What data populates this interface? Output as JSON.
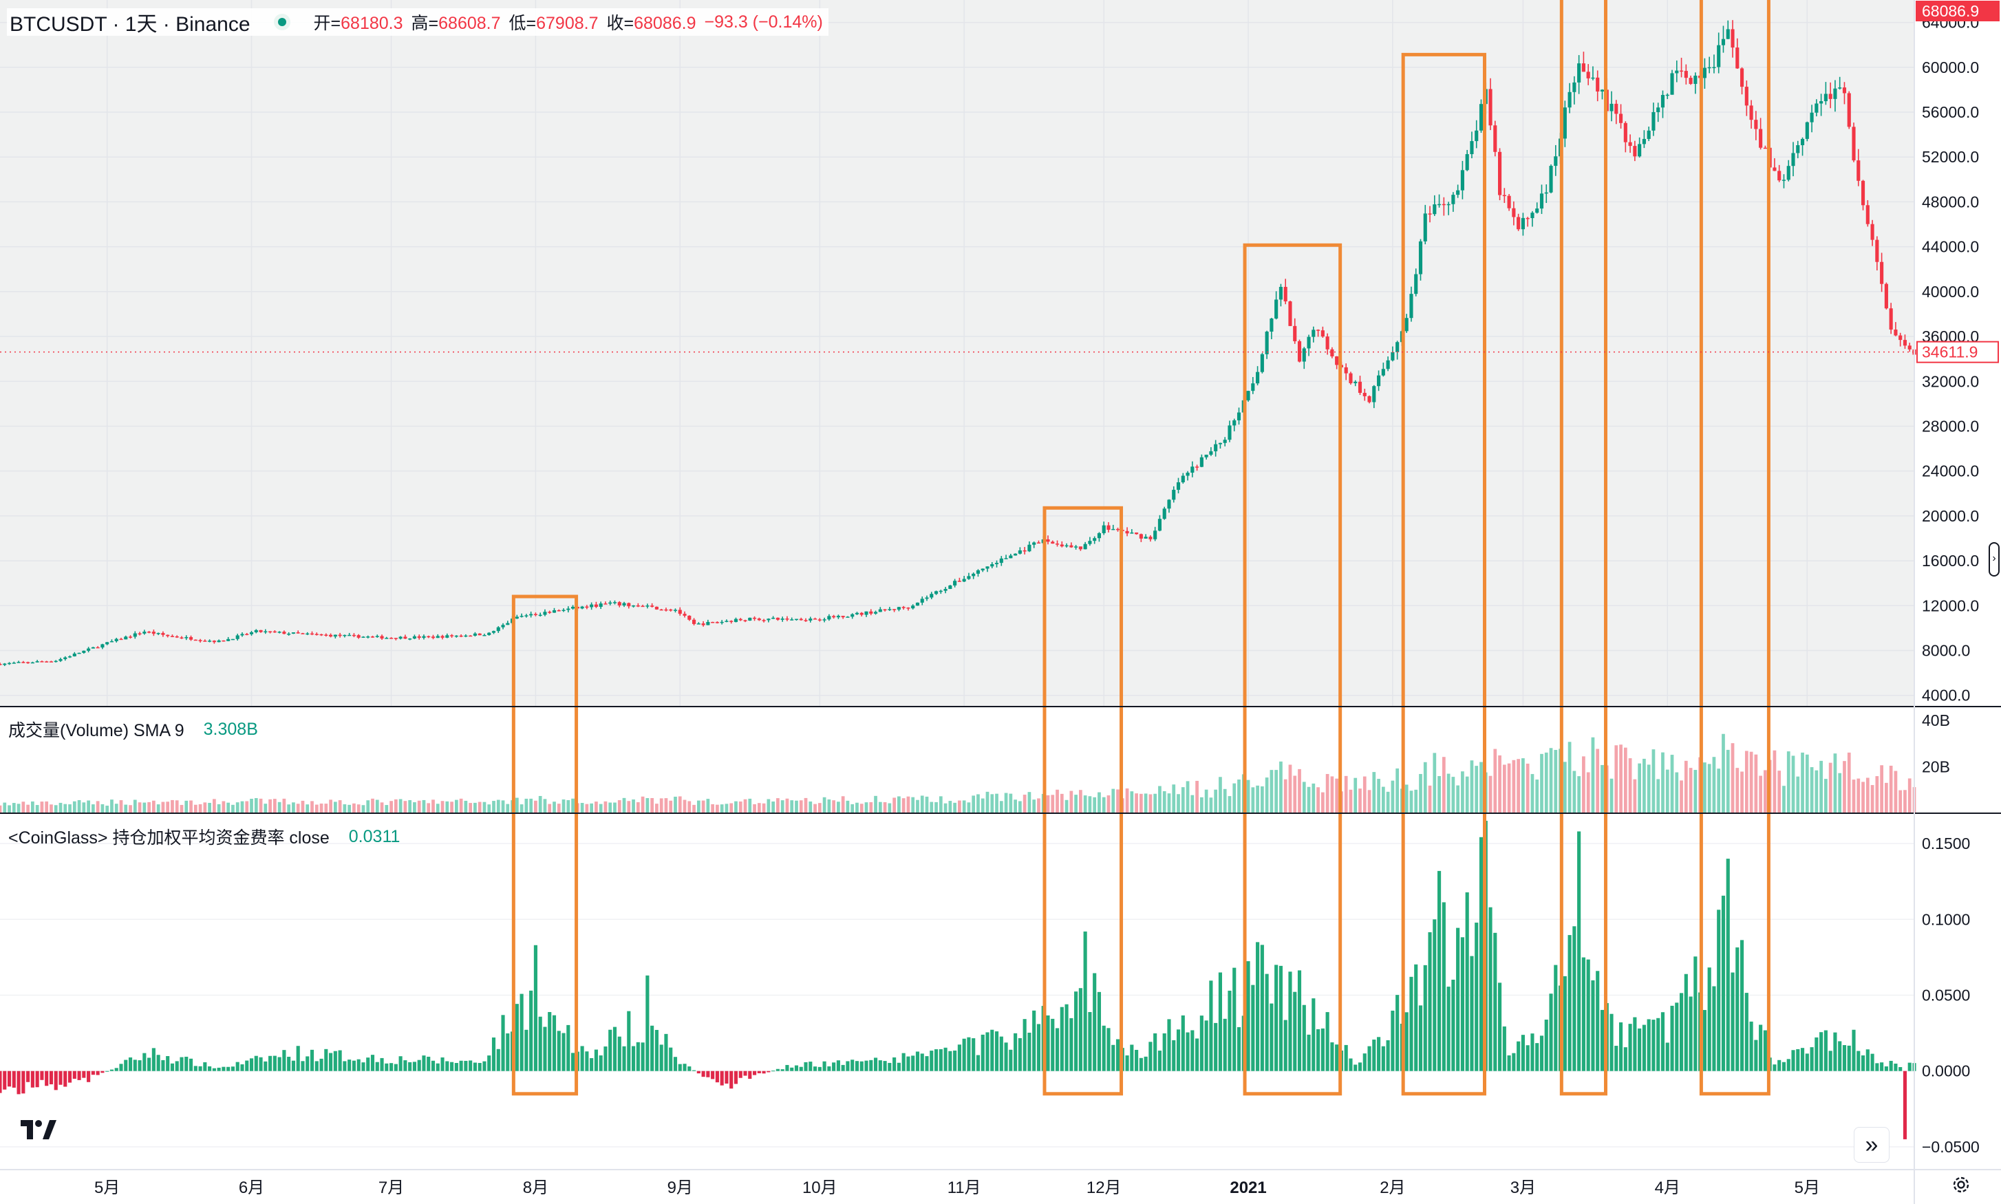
{
  "symbol": {
    "title": "BTCUSDT · 1天 · Binance"
  },
  "ohlc": {
    "open_label": "开=",
    "open": "68180.3",
    "high_label": "高=",
    "high": "68608.7",
    "low_label": "低=",
    "low": "67908.7",
    "close_label": "收=",
    "close": "68086.9",
    "change": "−93.3 (−0.14%)"
  },
  "price_axis": {
    "ticks": [
      "64000.0",
      "60000.0",
      "56000.0",
      "52000.0",
      "48000.0",
      "44000.0",
      "40000.0",
      "36000.0",
      "32000.0",
      "28000.0",
      "24000.0",
      "20000.0",
      "16000.0",
      "12000.0",
      "8000.0",
      "4000.0"
    ],
    "current_price_label": "68086.9",
    "last_visible_price_label": "34611.9"
  },
  "volume": {
    "title": "成交量(Volume) SMA 9",
    "value": "3.308B",
    "ticks": [
      "40B",
      "20B"
    ]
  },
  "funding": {
    "title": "<CoinGlass> 持仓加权平均资金费率 close",
    "value": "0.0311",
    "ticks": [
      "0.1500",
      "0.1000",
      "0.0500",
      "0.0000",
      "−0.0500"
    ]
  },
  "time_axis": {
    "labels": [
      "5月",
      "6月",
      "7月",
      "8月",
      "9月",
      "10月",
      "11月",
      "12月",
      "2021",
      "2月",
      "3月",
      "4月",
      "5月"
    ]
  },
  "colors": {
    "up": "#089981",
    "down": "#f23645",
    "vol_up": "#7fd4bd",
    "vol_down": "#f4a3ab",
    "fr_pos": "#22ab7b",
    "fr_neg": "#e0284a",
    "highlight": "#f08a35",
    "plot_bg": "#f0f1f1"
  },
  "icons": {
    "logo": "tradingview-logo-icon",
    "goto": "double-chevron-right-icon",
    "settings": "gear-icon"
  },
  "chart_data": {
    "type": "candlestick",
    "x_range": [
      "2020-04-08",
      "2021-05-24"
    ],
    "x_ticks": [
      {
        "label": "5月",
        "date": "2020-05-01"
      },
      {
        "label": "6月",
        "date": "2020-06-01"
      },
      {
        "label": "7月",
        "date": "2020-07-01"
      },
      {
        "label": "8月",
        "date": "2020-08-01"
      },
      {
        "label": "9月",
        "date": "2020-09-01"
      },
      {
        "label": "10月",
        "date": "2020-10-01"
      },
      {
        "label": "11月",
        "date": "2020-11-01"
      },
      {
        "label": "12月",
        "date": "2020-12-01"
      },
      {
        "label": "2021",
        "date": "2021-01-01"
      },
      {
        "label": "2月",
        "date": "2021-02-01"
      },
      {
        "label": "3月",
        "date": "2021-03-01"
      },
      {
        "label": "4月",
        "date": "2021-04-01"
      },
      {
        "label": "5月",
        "date": "2021-05-01"
      }
    ],
    "y_range": [
      3000,
      66000
    ],
    "price_path_close": [
      [
        "2020-04-08",
        6800
      ],
      [
        "2020-04-20",
        7100
      ],
      [
        "2020-05-02",
        8800
      ],
      [
        "2020-05-09",
        9700
      ],
      [
        "2020-05-14",
        9300
      ],
      [
        "2020-05-25",
        8800
      ],
      [
        "2020-06-02",
        9700
      ],
      [
        "2020-06-15",
        9400
      ],
      [
        "2020-06-30",
        9150
      ],
      [
        "2020-07-10",
        9200
      ],
      [
        "2020-07-22",
        9500
      ],
      [
        "2020-07-28",
        11000
      ],
      [
        "2020-08-08",
        11700
      ],
      [
        "2020-08-17",
        12200
      ],
      [
        "2020-08-31",
        11650
      ],
      [
        "2020-09-04",
        10300
      ],
      [
        "2020-09-15",
        10800
      ],
      [
        "2020-09-30",
        10800
      ],
      [
        "2020-10-10",
        11300
      ],
      [
        "2020-10-20",
        11900
      ],
      [
        "2020-10-25",
        13000
      ],
      [
        "2020-11-06",
        15500
      ],
      [
        "2020-11-18",
        17800
      ],
      [
        "2020-11-26",
        17000
      ],
      [
        "2020-12-01",
        19000
      ],
      [
        "2020-12-11",
        18000
      ],
      [
        "2020-12-17",
        23000
      ],
      [
        "2020-12-27",
        27000
      ],
      [
        "2021-01-03",
        33000
      ],
      [
        "2021-01-08",
        40500
      ],
      [
        "2021-01-12",
        33500
      ],
      [
        "2021-01-15",
        37000
      ],
      [
        "2021-01-22",
        32500
      ],
      [
        "2021-01-27",
        30500
      ],
      [
        "2021-02-04",
        37500
      ],
      [
        "2021-02-08",
        46500
      ],
      [
        "2021-02-15",
        49000
      ],
      [
        "2021-02-21",
        57500
      ],
      [
        "2021-02-24",
        49000
      ],
      [
        "2021-02-28",
        45500
      ],
      [
        "2021-03-06",
        49000
      ],
      [
        "2021-03-13",
        61000
      ],
      [
        "2021-03-18",
        57500
      ],
      [
        "2021-03-25",
        52500
      ],
      [
        "2021-04-02",
        59000
      ],
      [
        "2021-04-10",
        59500
      ],
      [
        "2021-04-14",
        63500
      ],
      [
        "2021-04-18",
        56000
      ],
      [
        "2021-04-25",
        49500
      ],
      [
        "2021-05-03",
        57000
      ],
      [
        "2021-05-09",
        58000
      ],
      [
        "2021-05-12",
        49500
      ],
      [
        "2021-05-19",
        37000
      ],
      [
        "2021-05-24",
        34600
      ]
    ],
    "volume_scale_max_billions": 46,
    "funding_rate_y_range": [
      -0.065,
      0.17
    ],
    "funding_rate_notable": [
      [
        "2020-08-01",
        0.083
      ],
      [
        "2020-08-25",
        0.063
      ],
      [
        "2020-11-27",
        0.092
      ],
      [
        "2021-01-03",
        0.085
      ],
      [
        "2021-02-10",
        0.1
      ],
      [
        "2021-02-21",
        0.165
      ],
      [
        "2021-03-13",
        0.158
      ],
      [
        "2021-04-14",
        0.14
      ],
      [
        "2021-05-22",
        -0.045
      ]
    ],
    "highlight_periods": [
      [
        "2020-07-28",
        "2020-08-09"
      ],
      [
        "2020-11-19",
        "2020-12-04"
      ],
      [
        "2021-01-01",
        "2021-01-20"
      ],
      [
        "2021-02-04",
        "2021-02-20"
      ],
      [
        "2021-03-10",
        "2021-03-18"
      ],
      [
        "2021-04-09",
        "2021-04-22"
      ]
    ]
  }
}
